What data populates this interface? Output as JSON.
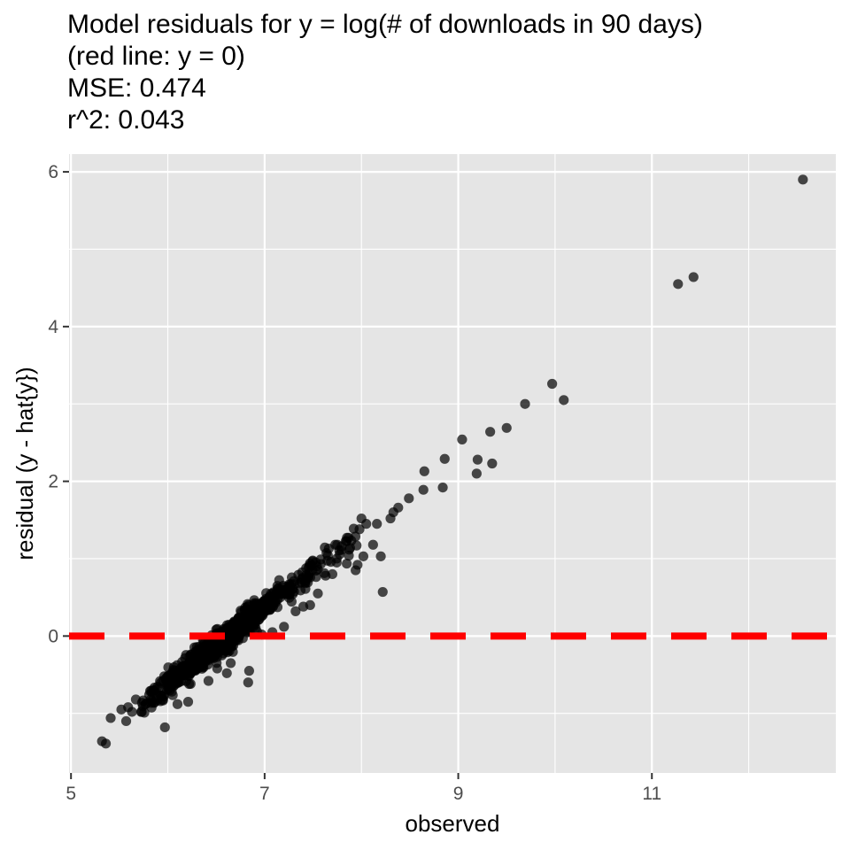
{
  "chart_data": {
    "type": "scatter",
    "title_lines": [
      "Model residuals for y = log(# of downloads in 90 days)",
      "(red line: y = 0)",
      "MSE: 0.474",
      "r^2: 0.043"
    ],
    "xlabel": "observed",
    "ylabel": "residual (y - hat{y})",
    "xlim": [
      4.98,
      12.9
    ],
    "ylim": [
      -1.77,
      6.23
    ],
    "x_ticks": [
      5,
      7,
      9,
      11
    ],
    "x_tick_labels": [
      "5",
      "7",
      "9",
      "11"
    ],
    "x_minor_ticks": [
      6,
      8,
      10,
      12
    ],
    "y_ticks": [
      0,
      2,
      4,
      6
    ],
    "y_tick_labels": [
      "0",
      "2",
      "4",
      "6"
    ],
    "y_minor_ticks": [
      -1,
      1,
      3,
      5
    ],
    "grid": true,
    "legend": "none",
    "colors": {
      "panel_background": "#e5e5e5",
      "grid": "#ffffff",
      "points": "#000000",
      "reference_line": "#ff0000",
      "tick_label": "#4d4d4d",
      "axis_label": "#000000"
    },
    "reference_line": {
      "y": 0,
      "style": "dashed"
    },
    "point_opacity": 0.7,
    "points_explicit": [
      [
        12.56,
        5.9
      ],
      [
        11.27,
        4.55
      ],
      [
        11.43,
        4.64
      ],
      [
        9.97,
        3.26
      ],
      [
        10.09,
        3.05
      ],
      [
        9.69,
        3.0
      ],
      [
        9.5,
        2.69
      ],
      [
        9.33,
        2.64
      ],
      [
        9.35,
        2.23
      ],
      [
        9.2,
        2.28
      ],
      [
        9.19,
        2.1
      ],
      [
        9.04,
        2.54
      ],
      [
        8.86,
        2.29
      ],
      [
        8.84,
        1.92
      ],
      [
        8.65,
        2.13
      ],
      [
        8.64,
        1.89
      ],
      [
        8.49,
        1.78
      ],
      [
        8.38,
        1.66
      ],
      [
        8.33,
        1.6
      ],
      [
        8.3,
        1.52
      ],
      [
        8.16,
        1.45
      ],
      [
        8.0,
        1.52
      ],
      [
        8.05,
        1.45
      ],
      [
        7.98,
        1.38
      ],
      [
        7.85,
        1.27
      ],
      [
        7.75,
        1.18
      ],
      [
        7.95,
        1.17
      ],
      [
        8.12,
        1.18
      ],
      [
        8.02,
        1.03
      ],
      [
        7.87,
        1.04
      ],
      [
        8.2,
        1.03
      ],
      [
        7.96,
        0.92
      ],
      [
        7.94,
        0.85
      ],
      [
        8.22,
        0.57
      ],
      [
        7.7,
        0.8
      ],
      [
        7.63,
        0.78
      ],
      [
        7.55,
        0.55
      ],
      [
        7.47,
        0.4
      ],
      [
        7.4,
        0.38
      ],
      [
        7.32,
        0.32
      ],
      [
        7.2,
        0.12
      ],
      [
        7.08,
        0.05
      ],
      [
        6.97,
        0.02
      ],
      [
        6.84,
        -0.45
      ],
      [
        6.83,
        -0.6
      ],
      [
        6.65,
        -0.35
      ],
      [
        6.61,
        -0.48
      ],
      [
        6.51,
        -0.42
      ],
      [
        6.42,
        -0.58
      ],
      [
        6.21,
        -0.85
      ],
      [
        6.22,
        -0.62
      ],
      [
        6.1,
        -0.88
      ],
      [
        5.97,
        -1.18
      ],
      [
        5.95,
        -0.82
      ],
      [
        5.77,
        -0.88
      ],
      [
        5.59,
        -0.92
      ],
      [
        5.63,
        -0.98
      ],
      [
        5.57,
        -1.1
      ],
      [
        5.41,
        -1.06
      ],
      [
        5.32,
        -1.36
      ],
      [
        5.36,
        -1.39
      ],
      [
        5.52,
        -0.95
      ],
      [
        5.67,
        -0.82
      ]
    ],
    "cloud": {
      "n_points": 900,
      "x_range": [
        5.72,
        7.95
      ],
      "x_mode": 6.55,
      "fit_intercept": -6.62,
      "fit_slope": 1.0,
      "spread_sd": 0.08,
      "spread_max": 0.34,
      "seed": 20240501
    }
  }
}
